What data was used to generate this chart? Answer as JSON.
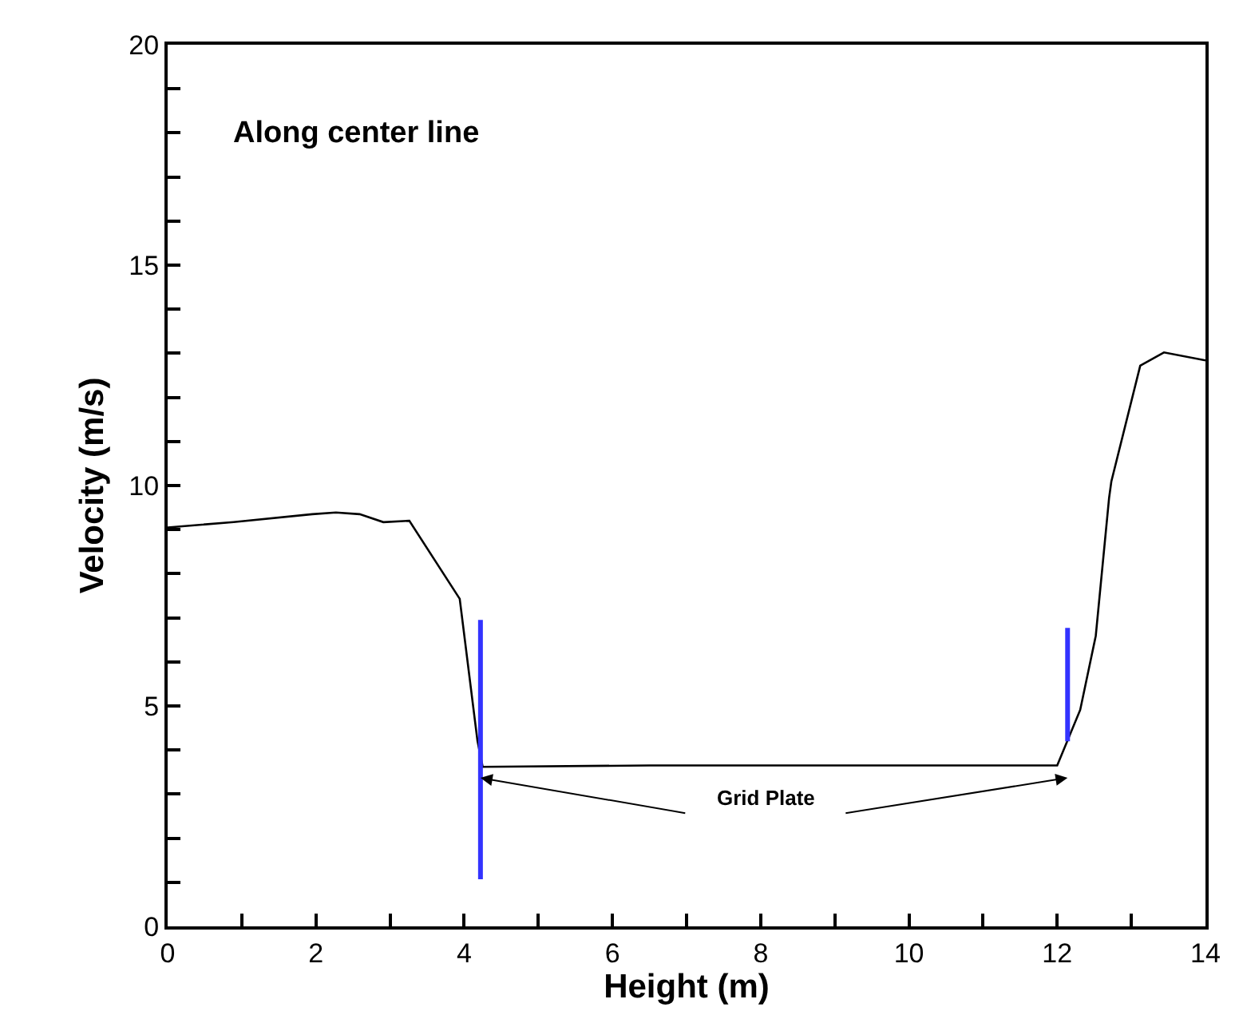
{
  "chart_data": {
    "type": "line",
    "xlabel": "Height (m)",
    "ylabel": "Velocity (m/s)",
    "annotations": [
      "Along center line",
      "Grid Plate"
    ],
    "series": [
      {
        "color": "#000000",
        "x": [
          0,
          0.89,
          1.95,
          2.27,
          2.59,
          2.91,
          3.26,
          3.94,
          4.18,
          4.25,
          6.5,
          12.0,
          12.31,
          12.52,
          12.7,
          12.73,
          13.12,
          13.44,
          14.0
        ],
        "values": [
          9.05,
          9.17,
          9.35,
          9.39,
          9.35,
          9.17,
          9.2,
          7.43,
          4.2,
          3.62,
          3.65,
          3.65,
          4.91,
          6.59,
          9.72,
          10.09,
          12.72,
          13.02,
          12.84
        ]
      },
      {
        "color": "#3333ff",
        "x": [
          4.22,
          4.22
        ],
        "values": [
          1.07,
          6.95
        ]
      },
      {
        "color": "#3333ff",
        "x": [
          12.14,
          12.14
        ],
        "values": [
          4.2,
          6.77
        ]
      }
    ],
    "xlim": [
      0,
      14
    ],
    "ylim": [
      0,
      20
    ],
    "xticks": [
      0,
      {
        "value": 1,
        "label": null
      },
      2,
      {
        "value": 3,
        "label": null
      },
      4,
      {
        "value": 5,
        "label": null
      },
      6,
      {
        "value": 7,
        "label": null
      },
      8,
      {
        "value": 9,
        "label": null
      },
      10,
      {
        "value": 11,
        "label": null
      },
      12,
      {
        "value": 13,
        "label": null
      },
      14
    ],
    "yticks": [
      0,
      {
        "value": 1,
        "label": null
      },
      {
        "value": 2,
        "label": null
      },
      {
        "value": 3,
        "label": null
      },
      {
        "value": 4,
        "label": null
      },
      5,
      {
        "value": 6,
        "label": null
      },
      {
        "value": 7,
        "label": null
      },
      {
        "value": 8,
        "label": null
      },
      {
        "value": 9,
        "label": null
      },
      10,
      {
        "value": 11,
        "label": null
      },
      {
        "value": 12,
        "label": null
      },
      {
        "value": 13,
        "label": null
      },
      {
        "value": 14,
        "label": null
      },
      15,
      {
        "value": 16,
        "label": null
      },
      {
        "value": 17,
        "label": null
      },
      {
        "value": 18,
        "label": null
      },
      {
        "value": 19,
        "label": null
      },
      20
    ],
    "marker": "none",
    "line_style": "solid"
  }
}
